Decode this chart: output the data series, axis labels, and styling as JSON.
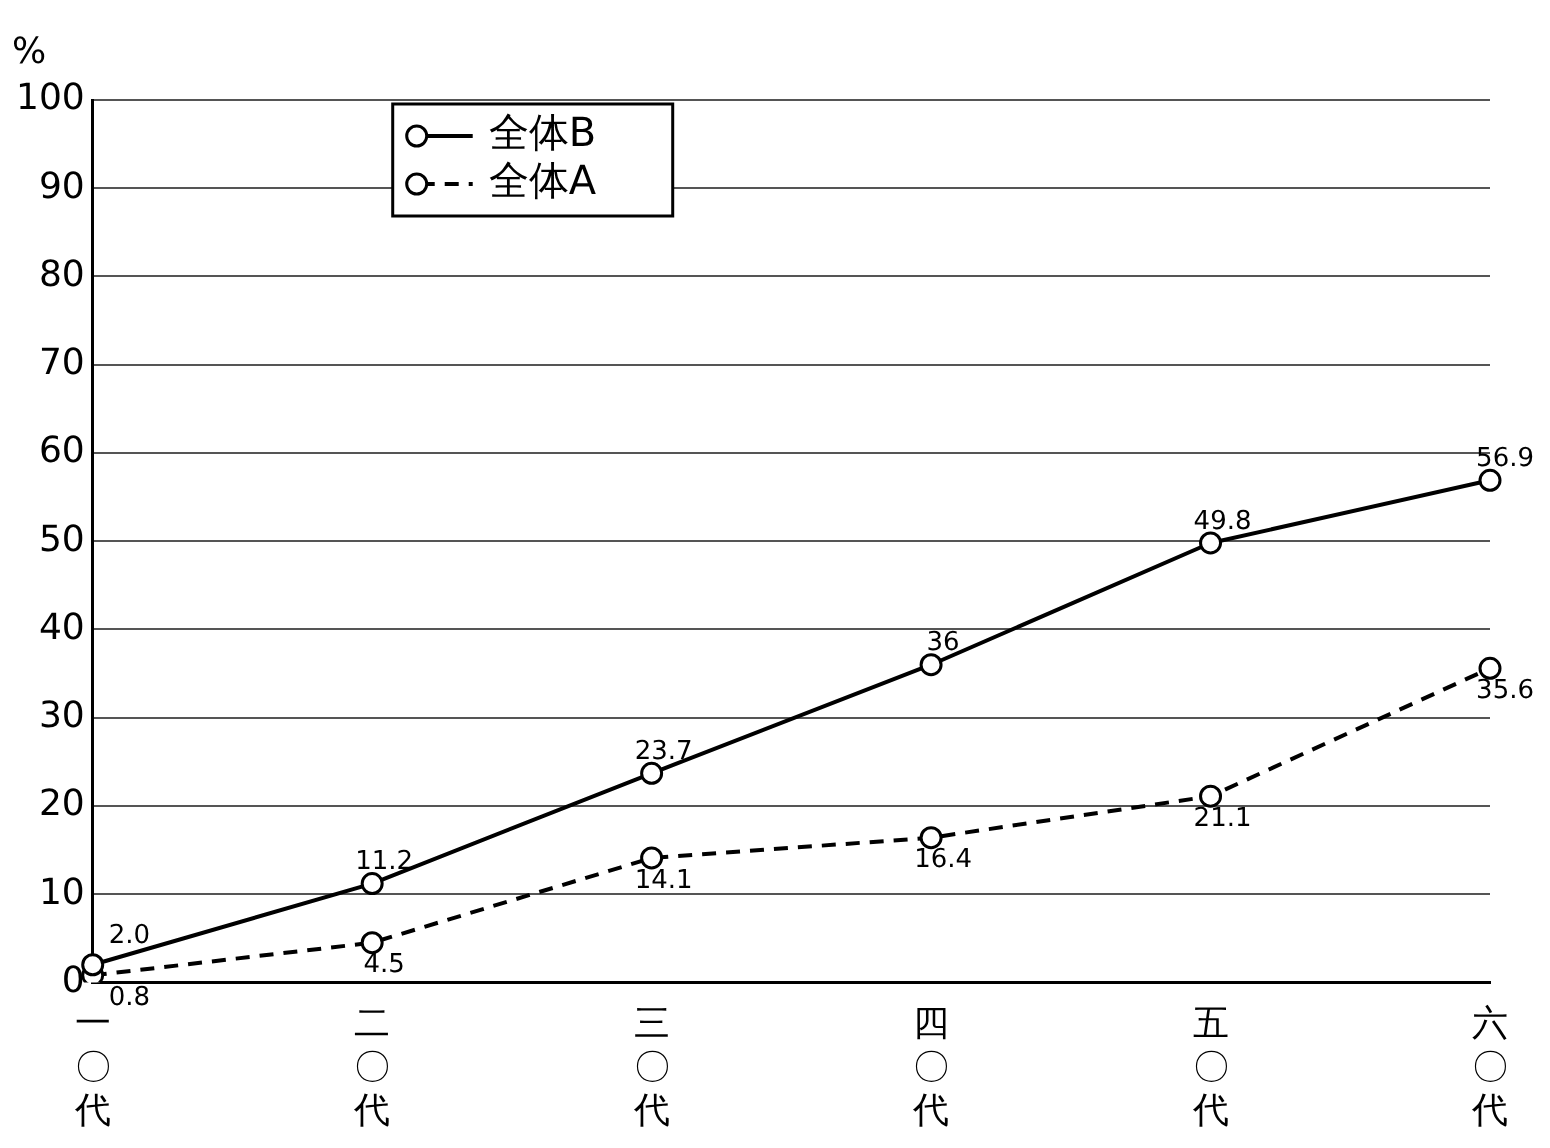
{
  "chart_data": {
    "type": "line",
    "ylabel": "%",
    "categories": [
      "一〇代",
      "二〇代",
      "三〇代",
      "四〇代",
      "五〇代",
      "六〇代"
    ],
    "series": [
      {
        "name": "全体B",
        "color": "#000000",
        "line_style": "solid",
        "values": [
          2.0,
          11.2,
          23.7,
          36,
          49.8,
          56.9
        ],
        "value_labels": [
          "2.0",
          "11.2",
          "23.7",
          "36",
          "49.8",
          "56.9"
        ]
      },
      {
        "name": "全体A",
        "color": "#000000",
        "line_style": "dashed",
        "values": [
          0.8,
          4.5,
          14.1,
          16.4,
          21.1,
          35.6
        ],
        "value_labels": [
          "0.8",
          "4.5",
          "14.1",
          "16.4",
          "21.1",
          "35.6"
        ]
      }
    ],
    "ylim": [
      0,
      100
    ],
    "yticks": [
      0,
      10,
      20,
      30,
      40,
      50,
      60,
      70,
      80,
      90,
      100
    ],
    "grid": "y",
    "legend": "top left",
    "marker": "circle"
  }
}
